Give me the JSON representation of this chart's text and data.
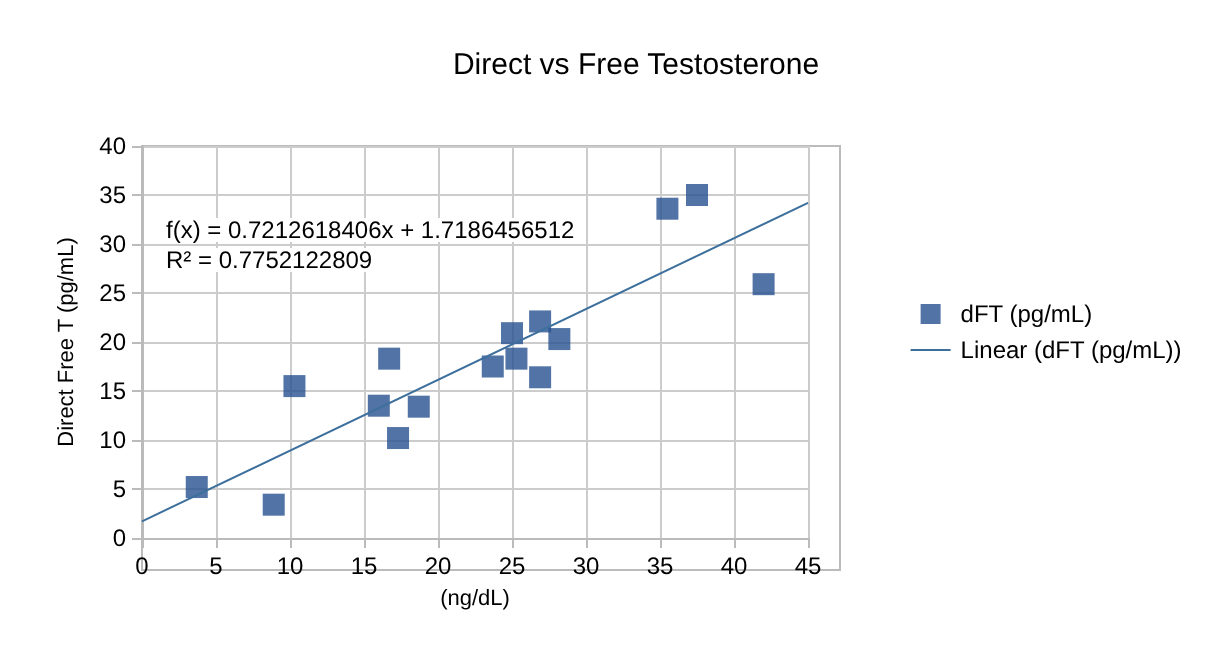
{
  "chart_data": {
    "type": "scatter",
    "title": "Direct vs Free Testosterone",
    "xlabel": "(ng/dL)",
    "ylabel": "Direct Free T (pg/mL)",
    "x": [
      3.7,
      8.9,
      10.3,
      16,
      16.7,
      17.3,
      18.7,
      23.7,
      25,
      25.3,
      26.9,
      26.9,
      28.2,
      35.5,
      37.5,
      42
    ],
    "series": [
      {
        "name": "dFT (pg/mL)",
        "color": "#27508f",
        "marker": "square",
        "values": [
          5.2,
          3.4,
          15.5,
          13.5,
          18.3,
          10.2,
          13.4,
          17.5,
          20.9,
          18.3,
          22.1,
          16.4,
          20.3,
          33.6,
          35,
          25.9
        ]
      },
      {
        "name": "Linear (dFT (pg/mL))",
        "type": "line",
        "color": "#3d6f9c",
        "marker": "none",
        "line_style": "solid",
        "x": [
          0,
          45
        ],
        "values": [
          1.7,
          34.2
        ]
      }
    ],
    "annotations": [
      "f(x) = 0.7212618406x + 1.7186456512",
      "R² = 0.7752122809"
    ],
    "xlim": [
      0,
      45
    ],
    "xticks": [
      0,
      5,
      10,
      15,
      20,
      25,
      30,
      35,
      40,
      45
    ],
    "ylim": [
      0,
      40
    ],
    "yticks": [
      0,
      5,
      10,
      15,
      20,
      25,
      30,
      35,
      40
    ],
    "grid": true,
    "legend": "right"
  }
}
